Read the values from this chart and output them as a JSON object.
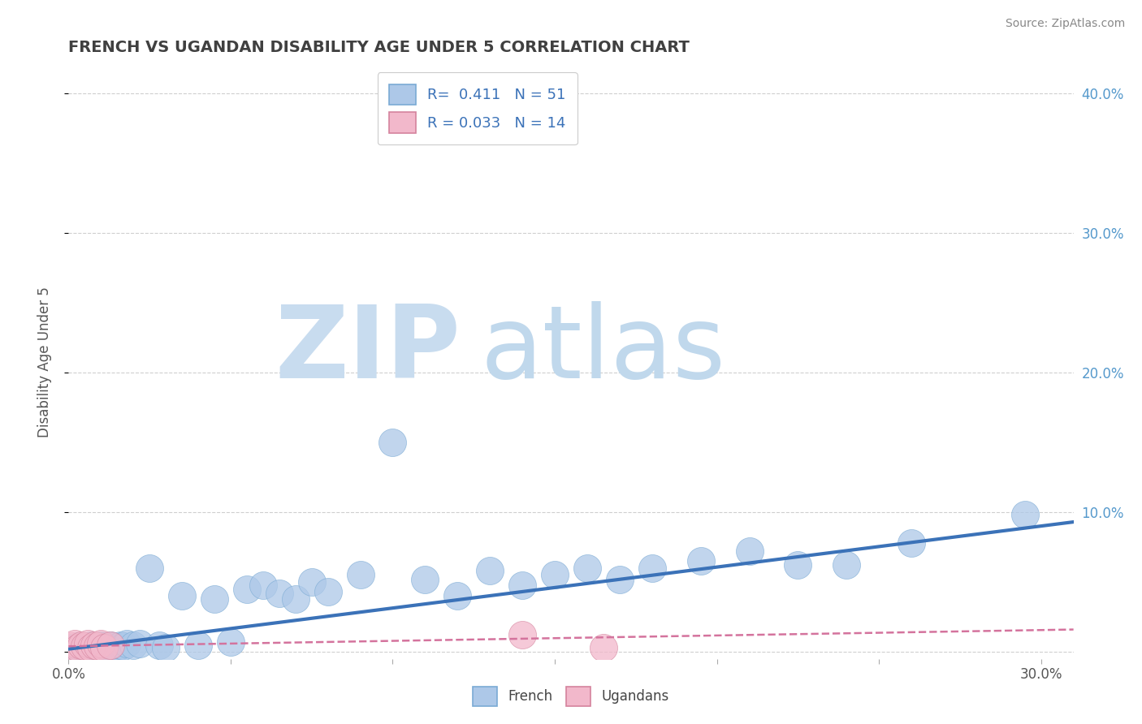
{
  "title": "FRENCH VS UGANDAN DISABILITY AGE UNDER 5 CORRELATION CHART",
  "source_text": "Source: ZipAtlas.com",
  "ylabel": "Disability Age Under 5",
  "xlim": [
    0.0,
    0.31
  ],
  "ylim": [
    -0.005,
    0.42
  ],
  "xtick_positions": [
    0.0,
    0.05,
    0.1,
    0.15,
    0.2,
    0.25,
    0.3
  ],
  "xticklabels": [
    "0.0%",
    "",
    "",
    "",
    "",
    "",
    "30.0%"
  ],
  "ytick_positions": [
    0.0,
    0.1,
    0.2,
    0.3,
    0.4
  ],
  "ytick_labels_right": [
    "",
    "10.0%",
    "20.0%",
    "30.0%",
    "40.0%"
  ],
  "french_R": 0.411,
  "french_N": 51,
  "ugandan_R": 0.033,
  "ugandan_N": 14,
  "french_color": "#adc8e8",
  "french_edge_color": "#7aaad4",
  "french_line_color": "#3b72b8",
  "ugandan_color": "#f2b8cb",
  "ugandan_edge_color": "#d4839d",
  "ugandan_line_color": "#d4739d",
  "watermark_zip_color": "#c8dcef",
  "watermark_atlas_color": "#c0d8ec",
  "background_color": "#ffffff",
  "grid_color": "#bbbbbb",
  "title_color": "#404040",
  "source_color": "#888888",
  "legend_label_color": "#3b72b8",
  "right_axis_color": "#5599cc",
  "french_x": [
    0.001,
    0.002,
    0.003,
    0.004,
    0.005,
    0.006,
    0.007,
    0.007,
    0.008,
    0.009,
    0.01,
    0.01,
    0.011,
    0.012,
    0.013,
    0.014,
    0.015,
    0.016,
    0.017,
    0.018,
    0.02,
    0.022,
    0.025,
    0.028,
    0.03,
    0.035,
    0.04,
    0.045,
    0.05,
    0.055,
    0.06,
    0.065,
    0.07,
    0.075,
    0.08,
    0.09,
    0.1,
    0.11,
    0.12,
    0.13,
    0.14,
    0.15,
    0.16,
    0.17,
    0.18,
    0.195,
    0.21,
    0.225,
    0.24,
    0.26,
    0.295
  ],
  "french_y": [
    0.003,
    0.002,
    0.004,
    0.003,
    0.002,
    0.004,
    0.003,
    0.005,
    0.003,
    0.004,
    0.003,
    0.005,
    0.004,
    0.003,
    0.005,
    0.004,
    0.003,
    0.005,
    0.004,
    0.006,
    0.005,
    0.006,
    0.06,
    0.005,
    0.003,
    0.04,
    0.005,
    0.038,
    0.007,
    0.045,
    0.048,
    0.042,
    0.038,
    0.05,
    0.043,
    0.055,
    0.15,
    0.052,
    0.04,
    0.058,
    0.048,
    0.055,
    0.06,
    0.052,
    0.06,
    0.065,
    0.072,
    0.062,
    0.062,
    0.078,
    0.098
  ],
  "ugandan_x": [
    0.001,
    0.002,
    0.003,
    0.004,
    0.005,
    0.006,
    0.007,
    0.008,
    0.009,
    0.01,
    0.011,
    0.013,
    0.14,
    0.165
  ],
  "ugandan_y": [
    0.004,
    0.006,
    0.003,
    0.005,
    0.004,
    0.006,
    0.003,
    0.005,
    0.004,
    0.006,
    0.003,
    0.005,
    0.012,
    0.003
  ],
  "french_trendline_x": [
    0.0,
    0.31
  ],
  "french_trendline_y": [
    0.002,
    0.093
  ],
  "ugandan_trendline_x": [
    0.0,
    0.31
  ],
  "ugandan_trendline_y": [
    0.004,
    0.016
  ]
}
